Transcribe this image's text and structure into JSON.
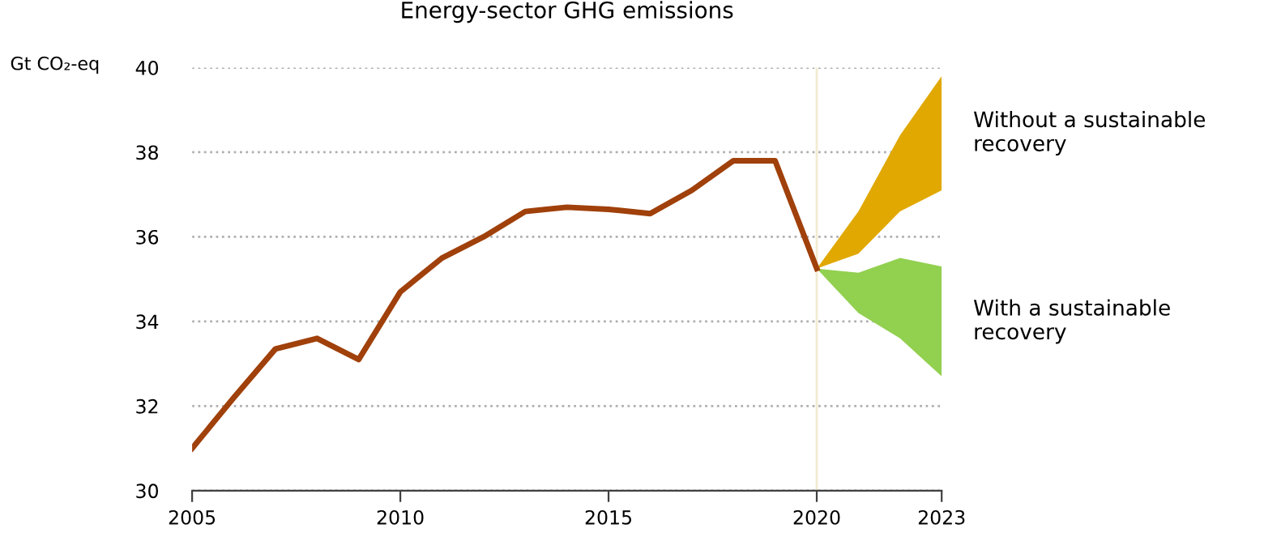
{
  "chart_data": {
    "type": "line",
    "title": "Energy-sector GHG emissions",
    "ylabel": "Gt CO₂-eq",
    "xlim": [
      2005,
      2023
    ],
    "xticks": [
      2005,
      2010,
      2015,
      2020,
      2023
    ],
    "ylim": [
      30,
      40
    ],
    "yticks": [
      30,
      32,
      34,
      36,
      38,
      40
    ],
    "grid": "y",
    "legend": false,
    "marker": "none",
    "line_style": "solid",
    "annotations": [
      {
        "text": "Without a sustainable recovery",
        "x": 2023,
        "y": 38.45
      },
      {
        "text": "With a sustainable recovery",
        "x": 2023,
        "y": 34.0
      }
    ],
    "ref_lines": [
      {
        "axis": "x",
        "value": 2020,
        "label": null,
        "color": "#f2ecd2"
      }
    ],
    "series": [
      {
        "color": "#a0400a",
        "x": [
          2005,
          2006,
          2007,
          2008,
          2009,
          2010,
          2011,
          2012,
          2013,
          2014,
          2015,
          2016,
          2017,
          2018,
          2019,
          2020
        ],
        "values": [
          31.0,
          32.2,
          33.35,
          33.6,
          33.1,
          34.7,
          35.5,
          36.0,
          36.6,
          36.7,
          36.65,
          36.55,
          37.1,
          37.8,
          37.8,
          35.25
        ]
      },
      {
        "type": "area",
        "color": "#e0a800",
        "x": [
          2020,
          2021,
          2022,
          2023
        ],
        "values": [
          null,
          null,
          null,
          null
        ],
        "lower": [
          35.25,
          35.6,
          36.6,
          37.1
        ],
        "upper": [
          35.25,
          36.6,
          38.4,
          39.8
        ]
      },
      {
        "type": "area",
        "color": "#92d050",
        "x": [
          2020,
          2021,
          2022,
          2023
        ],
        "values": [
          null,
          null,
          null,
          null
        ],
        "lower": [
          35.25,
          34.2,
          33.6,
          32.7
        ],
        "upper": [
          35.25,
          35.15,
          35.5,
          35.3
        ]
      }
    ]
  }
}
